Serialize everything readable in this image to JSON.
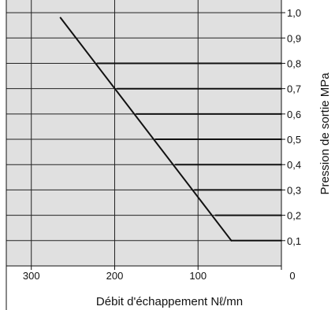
{
  "chart_data": {
    "type": "line",
    "title": "",
    "xlabel": "Débit d'échappement Nℓ/mn",
    "ylabel": "Pression de sortie MPa",
    "xlim": [
      330,
      0
    ],
    "ylim": [
      0,
      1.05
    ],
    "x_reversed": true,
    "x_ticks": [
      "300",
      "200",
      "100",
      "0"
    ],
    "x_tick_values": [
      300,
      200,
      100,
      0
    ],
    "y_ticks": [
      "0,1",
      "0,2",
      "0,3",
      "0,4",
      "0,5",
      "0,6",
      "0,7",
      "0,8",
      "0,9",
      "1,0"
    ],
    "y_tick_values": [
      0.1,
      0.2,
      0.3,
      0.4,
      0.5,
      0.6,
      0.7,
      0.8,
      0.9,
      1.0
    ],
    "grid": true,
    "plot_background": "#e0e0e0",
    "line_color": "#111111",
    "series": [
      {
        "x": [
          265,
          60
        ],
        "y": [
          0.98,
          0.1
        ]
      },
      {
        "x": [
          60,
          50,
          0
        ],
        "y": [
          0.1,
          0.1,
          0.1
        ]
      },
      {
        "x": [
          79,
          72,
          0
        ],
        "y": [
          0.2,
          0.2,
          0.2
        ]
      },
      {
        "x": [
          104,
          96,
          0
        ],
        "y": [
          0.3,
          0.3,
          0.3
        ]
      },
      {
        "x": [
          127,
          118,
          0
        ],
        "y": [
          0.4,
          0.4,
          0.4
        ]
      },
      {
        "x": [
          151,
          143,
          0
        ],
        "y": [
          0.5,
          0.5,
          0.5
        ]
      },
      {
        "x": [
          174,
          164,
          0
        ],
        "y": [
          0.6,
          0.6,
          0.6
        ]
      },
      {
        "x": [
          197,
          192,
          0
        ],
        "y": [
          0.7,
          0.7,
          0.7
        ]
      },
      {
        "x": [
          221,
          212,
          0
        ],
        "y": [
          0.8,
          0.8,
          0.8
        ]
      }
    ]
  }
}
